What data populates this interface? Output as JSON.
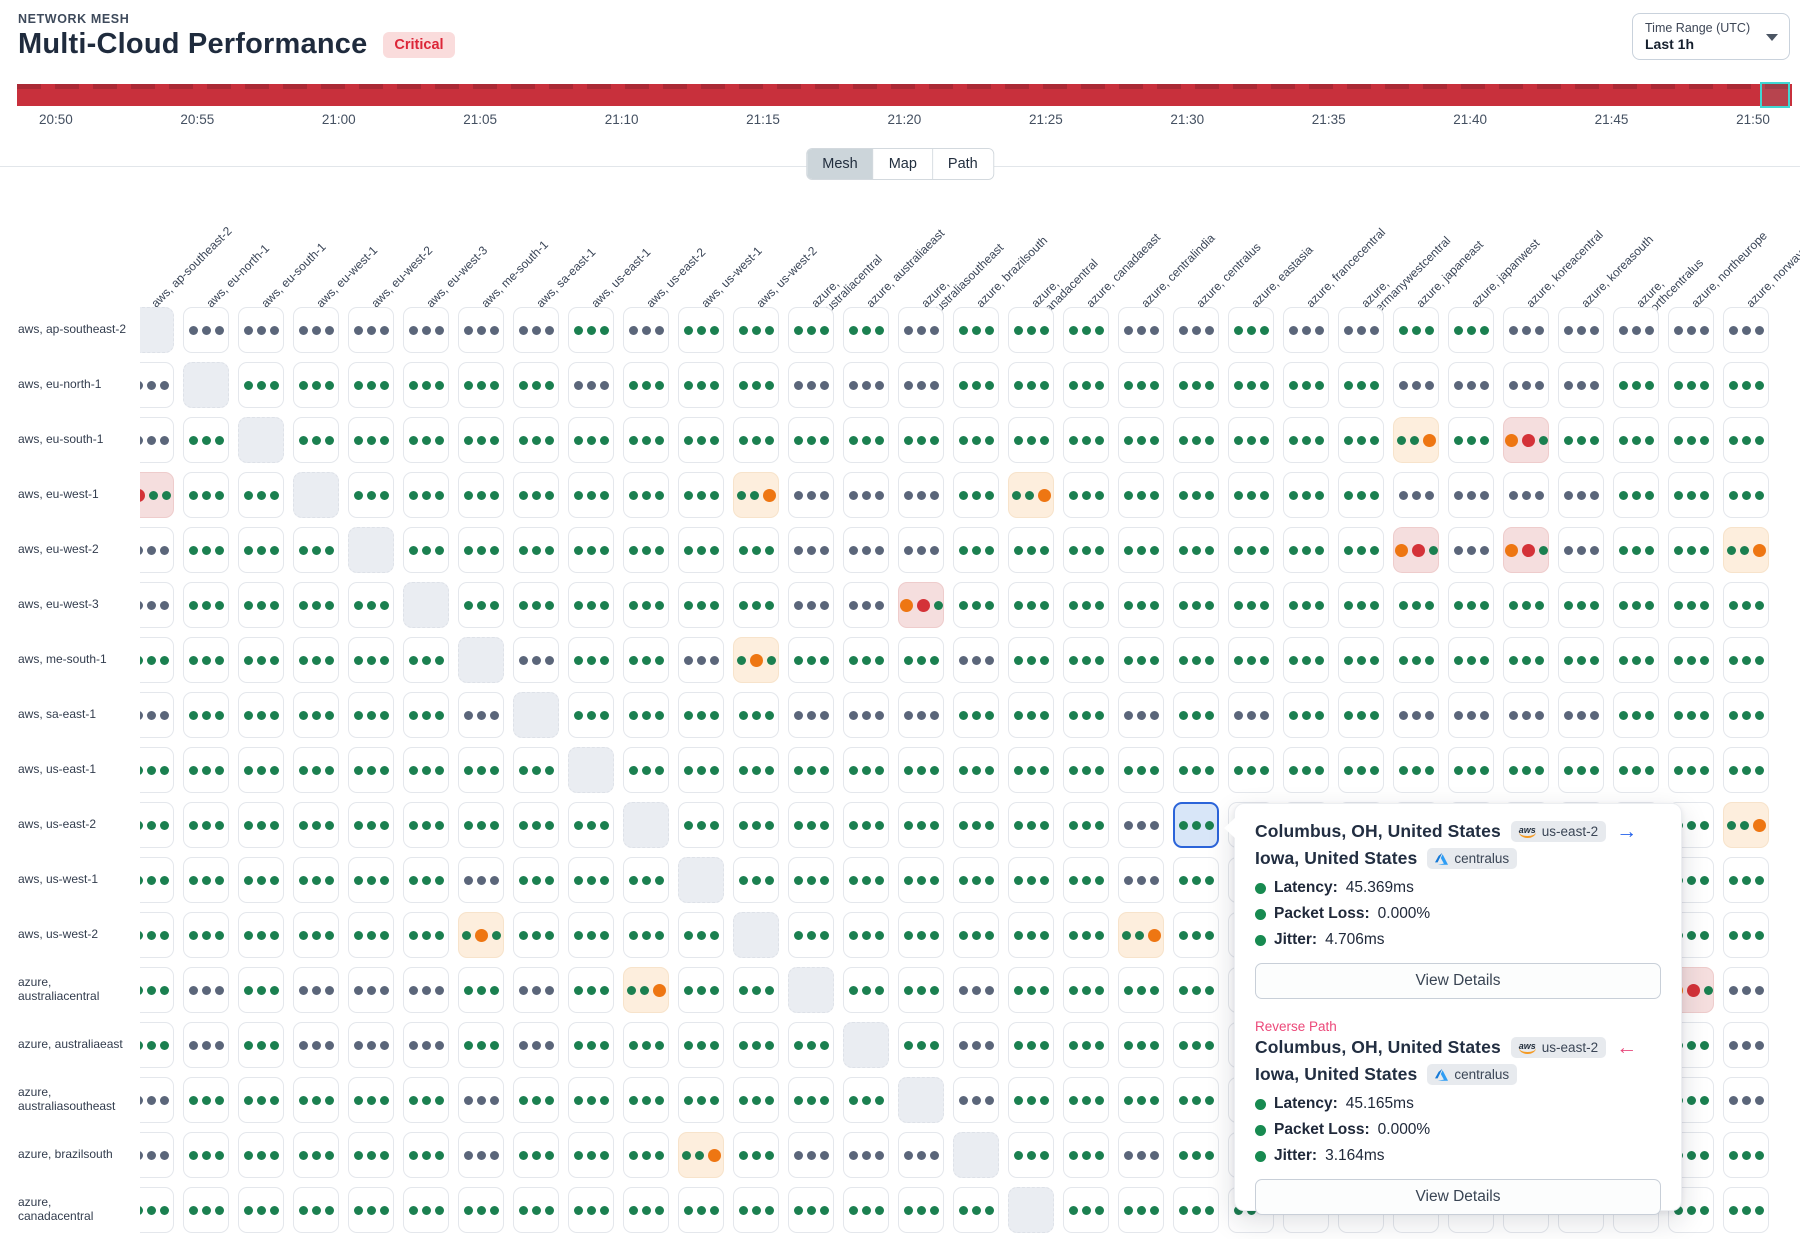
{
  "header": {
    "eyebrow": "NETWORK MESH",
    "title": "Multi-Cloud Performance",
    "status_badge": "Critical",
    "time_range": {
      "label": "Time Range (UTC)",
      "value": "Last 1h"
    }
  },
  "timeline": {
    "ticks": [
      "20:50",
      "20:55",
      "21:00",
      "21:05",
      "21:10",
      "21:15",
      "21:20",
      "21:25",
      "21:30",
      "21:35",
      "21:40",
      "21:45",
      "21:50"
    ],
    "bar_color": "#c8303c",
    "selection_color": "#3fd8d3"
  },
  "tabs": [
    {
      "label": "Mesh",
      "active": true
    },
    {
      "label": "Map",
      "active": false
    },
    {
      "label": "Path",
      "active": false
    }
  ],
  "matrix": {
    "columns": [
      "aws, ap-southeast-2",
      "aws, eu-north-1",
      "aws, eu-south-1",
      "aws, eu-west-1",
      "aws, eu-west-2",
      "aws, eu-west-3",
      "aws, me-south-1",
      "aws, sa-east-1",
      "aws, us-east-1",
      "aws, us-east-2",
      "aws, us-west-1",
      "aws, us-west-2",
      "azure,\naustraliacentral",
      "azure, australiaeast",
      "azure,\naustraliasoutheast",
      "azure, brazilsouth",
      "azure,\ncanadacentral",
      "azure, canadaeast",
      "azure, centralindia",
      "azure, centralus",
      "azure, eastasia",
      "azure, francecentral",
      "azure,\ngermanywestcentral",
      "azure, japaneast",
      "azure, japanwest",
      "azure, koreacentral",
      "azure, koreasouth",
      "azure,\nnorthcentralus",
      "azure, northeurope",
      "azure, norwayeast"
    ],
    "rows": [
      "aws, ap-southeast-2",
      "aws, eu-north-1",
      "aws, eu-south-1",
      "aws, eu-west-1",
      "aws, eu-west-2",
      "aws, eu-west-3",
      "aws, me-south-1",
      "aws, sa-east-1",
      "aws, us-east-1",
      "aws, us-east-2",
      "aws, us-west-1",
      "aws, us-west-2",
      "azure,\naustraliacentral",
      "azure, australiaeast",
      "azure,\naustraliasoutheast",
      "azure, brazilsouth",
      "azure,\ncanadacentral"
    ],
    "cell_codes": {
      "g": "all-ok green dots",
      "d": "no-data gray dots",
      "e": "self diagonal empty",
      "s": "selected ok cell",
      "W1": "warning bg dots g,g,orange",
      "W2": "warning bg dots g,orange,g",
      "C1": "critical bg dots orange,red,green",
      "C2": "critical bg dots red,green,green"
    },
    "cells": [
      [
        "e",
        "d",
        "d",
        "d",
        "d",
        "d",
        "d",
        "d",
        "g",
        "d",
        "g",
        "g",
        "g",
        "g",
        "d",
        "g",
        "g",
        "g",
        "d",
        "d",
        "g",
        "d",
        "d",
        "g",
        "g",
        "d",
        "d",
        "d",
        "d",
        "d"
      ],
      [
        "d",
        "e",
        "g",
        "g",
        "g",
        "g",
        "g",
        "g",
        "d",
        "g",
        "g",
        "g",
        "d",
        "d",
        "d",
        "g",
        "g",
        "g",
        "g",
        "g",
        "g",
        "g",
        "g",
        "d",
        "d",
        "d",
        "d",
        "g",
        "g",
        "g"
      ],
      [
        "d",
        "g",
        "e",
        "g",
        "g",
        "g",
        "g",
        "g",
        "g",
        "g",
        "g",
        "g",
        "g",
        "g",
        "g",
        "g",
        "g",
        "g",
        "g",
        "g",
        "g",
        "g",
        "g",
        "W1",
        "g",
        "C1",
        "g",
        "g",
        "g",
        "g"
      ],
      [
        "C2",
        "g",
        "g",
        "e",
        "g",
        "g",
        "g",
        "g",
        "g",
        "g",
        "g",
        "W1",
        "d",
        "d",
        "d",
        "g",
        "W1",
        "g",
        "g",
        "g",
        "g",
        "g",
        "g",
        "d",
        "d",
        "d",
        "d",
        "g",
        "g",
        "g"
      ],
      [
        "d",
        "g",
        "g",
        "g",
        "e",
        "g",
        "g",
        "g",
        "g",
        "g",
        "g",
        "g",
        "d",
        "d",
        "d",
        "g",
        "g",
        "g",
        "g",
        "g",
        "g",
        "g",
        "g",
        "C1",
        "d",
        "C1",
        "d",
        "g",
        "g",
        "W1"
      ],
      [
        "d",
        "g",
        "g",
        "g",
        "g",
        "e",
        "g",
        "g",
        "g",
        "g",
        "g",
        "g",
        "d",
        "d",
        "C1",
        "g",
        "g",
        "g",
        "g",
        "g",
        "g",
        "g",
        "g",
        "g",
        "g",
        "g",
        "g",
        "g",
        "g",
        "g"
      ],
      [
        "g",
        "g",
        "g",
        "g",
        "g",
        "g",
        "e",
        "d",
        "g",
        "g",
        "d",
        "W2",
        "g",
        "g",
        "g",
        "d",
        "g",
        "g",
        "g",
        "g",
        "g",
        "g",
        "g",
        "g",
        "g",
        "g",
        "g",
        "g",
        "g",
        "g"
      ],
      [
        "d",
        "g",
        "g",
        "g",
        "g",
        "g",
        "d",
        "e",
        "g",
        "g",
        "g",
        "g",
        "d",
        "d",
        "d",
        "g",
        "g",
        "g",
        "d",
        "g",
        "d",
        "g",
        "g",
        "d",
        "d",
        "d",
        "d",
        "g",
        "g",
        "g"
      ],
      [
        "g",
        "g",
        "g",
        "g",
        "g",
        "g",
        "g",
        "g",
        "e",
        "g",
        "g",
        "g",
        "g",
        "g",
        "g",
        "g",
        "g",
        "g",
        "g",
        "g",
        "g",
        "g",
        "g",
        "g",
        "g",
        "g",
        "g",
        "g",
        "g",
        "g"
      ],
      [
        "g",
        "g",
        "g",
        "g",
        "g",
        "g",
        "g",
        "g",
        "g",
        "e",
        "g",
        "g",
        "g",
        "g",
        "g",
        "g",
        "g",
        "g",
        "d",
        "s",
        "g",
        "g",
        "g",
        "g",
        "g",
        "g",
        "g",
        "g",
        "g",
        "W1"
      ],
      [
        "g",
        "g",
        "g",
        "g",
        "g",
        "g",
        "d",
        "g",
        "g",
        "g",
        "e",
        "g",
        "g",
        "g",
        "g",
        "g",
        "g",
        "g",
        "d",
        "g",
        "g",
        "g",
        "g",
        "g",
        "g",
        "g",
        "g",
        "g",
        "g",
        "g"
      ],
      [
        "g",
        "g",
        "g",
        "g",
        "g",
        "g",
        "W2",
        "g",
        "g",
        "g",
        "g",
        "e",
        "g",
        "g",
        "g",
        "g",
        "g",
        "g",
        "W1",
        "g",
        "g",
        "g",
        "g",
        "g",
        "g",
        "g",
        "g",
        "g",
        "g",
        "g"
      ],
      [
        "g",
        "d",
        "g",
        "d",
        "d",
        "d",
        "g",
        "d",
        "g",
        "W1",
        "g",
        "g",
        "e",
        "g",
        "g",
        "d",
        "g",
        "g",
        "g",
        "g",
        "g",
        "g",
        "g",
        "g",
        "g",
        "g",
        "g",
        "g",
        "C1",
        "d"
      ],
      [
        "g",
        "d",
        "g",
        "d",
        "d",
        "d",
        "g",
        "d",
        "g",
        "g",
        "g",
        "g",
        "g",
        "e",
        "g",
        "d",
        "g",
        "g",
        "g",
        "g",
        "g",
        "g",
        "g",
        "g",
        "g",
        "g",
        "g",
        "g",
        "g",
        "d"
      ],
      [
        "d",
        "g",
        "g",
        "g",
        "g",
        "g",
        "d",
        "g",
        "g",
        "g",
        "g",
        "g",
        "g",
        "g",
        "e",
        "d",
        "g",
        "g",
        "g",
        "g",
        "g",
        "g",
        "g",
        "g",
        "g",
        "g",
        "g",
        "g",
        "g",
        "d"
      ],
      [
        "d",
        "g",
        "g",
        "g",
        "g",
        "g",
        "d",
        "g",
        "g",
        "g",
        "W1",
        "g",
        "d",
        "d",
        "d",
        "e",
        "g",
        "g",
        "d",
        "g",
        "g",
        "g",
        "g",
        "g",
        "g",
        "g",
        "g",
        "g",
        "g",
        "g"
      ],
      [
        "g",
        "g",
        "g",
        "g",
        "g",
        "g",
        "g",
        "g",
        "g",
        "g",
        "g",
        "g",
        "g",
        "g",
        "g",
        "g",
        "e",
        "g",
        "g",
        "g",
        "g",
        "g",
        "g",
        "g",
        "g",
        "g",
        "g",
        "g",
        "g",
        "g"
      ]
    ],
    "selected_cell": {
      "row_label": "aws, us-east-2",
      "col_label": "azure, centralus"
    }
  },
  "colors": {
    "ok_dot": "#1b8050",
    "dim_dot": "#5b667a",
    "warn_dot": "#ee7612",
    "crit_dot": "#d43238",
    "warn_bg": "#fdeedd",
    "crit_bg": "#f5dede",
    "empty_bg": "#eaedf2",
    "selected_bg": "#d8e6f8",
    "selected_border": "#2b64d9"
  },
  "tooltip": {
    "forward": {
      "source_city": "Columbus, OH, United States",
      "source_badge": {
        "provider": "aws",
        "region": "us-east-2"
      },
      "dest_city": "Iowa, United States",
      "dest_badge": {
        "provider": "azure",
        "region": "centralus"
      },
      "metrics": [
        {
          "label": "Latency",
          "value": "45.369ms"
        },
        {
          "label": "Packet Loss",
          "value": "0.000%"
        },
        {
          "label": "Jitter",
          "value": "4.706ms"
        }
      ],
      "button": "View Details"
    },
    "reverse": {
      "section_label": "Reverse Path",
      "source_city": "Columbus, OH, United States",
      "source_badge": {
        "provider": "aws",
        "region": "us-east-2"
      },
      "dest_city": "Iowa, United States",
      "dest_badge": {
        "provider": "azure",
        "region": "centralus"
      },
      "metrics": [
        {
          "label": "Latency",
          "value": "45.165ms"
        },
        {
          "label": "Packet Loss",
          "value": "0.000%"
        },
        {
          "label": "Jitter",
          "value": "3.164ms"
        }
      ],
      "button": "View Details"
    }
  }
}
